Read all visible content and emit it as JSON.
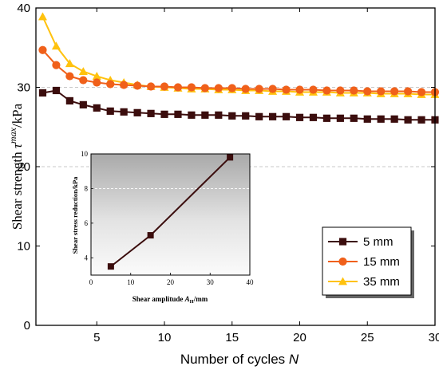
{
  "chart_data": [
    {
      "type": "line",
      "xlabel_main": "Number of cycles ",
      "xlabel_var": "N",
      "ylabel_main": "Shear strength ",
      "ylabel_sym": "τ",
      "ylabel_sup": "max",
      "ylabel_unit": "/kPa",
      "xlim": [
        0.5,
        30
      ],
      "ylim": [
        0,
        40
      ],
      "x_ticks": [
        "5",
        "10",
        "15",
        "20",
        "25",
        "30"
      ],
      "y_ticks": [
        "0",
        "10",
        "20",
        "30",
        "40"
      ],
      "gridlines_y": [
        20,
        30
      ],
      "legend_position": "bottom-right",
      "x": [
        1,
        2,
        3,
        4,
        5,
        6,
        7,
        8,
        9,
        10,
        11,
        12,
        13,
        14,
        15,
        16,
        17,
        18,
        19,
        20,
        21,
        22,
        23,
        24,
        25,
        26,
        27,
        28,
        29,
        30
      ],
      "series": [
        {
          "name": "5 mm",
          "color": "#3b0d0d",
          "marker": "square",
          "values": [
            29.3,
            29.6,
            28.3,
            27.8,
            27.4,
            27.0,
            26.9,
            26.8,
            26.7,
            26.6,
            26.6,
            26.5,
            26.5,
            26.5,
            26.4,
            26.4,
            26.3,
            26.3,
            26.3,
            26.2,
            26.2,
            26.1,
            26.1,
            26.1,
            26.0,
            26.0,
            26.0,
            25.9,
            25.9,
            25.9
          ]
        },
        {
          "name": "15 mm",
          "color": "#f0601a",
          "marker": "circle",
          "values": [
            34.7,
            32.8,
            31.4,
            30.9,
            30.6,
            30.4,
            30.3,
            30.2,
            30.1,
            30.1,
            30.0,
            30.0,
            29.9,
            29.9,
            29.9,
            29.8,
            29.8,
            29.8,
            29.7,
            29.7,
            29.7,
            29.6,
            29.6,
            29.6,
            29.5,
            29.5,
            29.5,
            29.5,
            29.4,
            29.4
          ]
        },
        {
          "name": "35 mm",
          "color": "#ffc20e",
          "marker": "triangle",
          "values": [
            38.9,
            35.2,
            33.0,
            32.0,
            31.4,
            30.9,
            30.6,
            30.3,
            30.1,
            30.0,
            29.9,
            29.8,
            29.8,
            29.7,
            29.7,
            29.6,
            29.6,
            29.5,
            29.5,
            29.4,
            29.4,
            29.4,
            29.3,
            29.3,
            29.3,
            29.2,
            29.2,
            29.2,
            29.1,
            29.1
          ]
        }
      ]
    },
    {
      "type": "line",
      "xlabel_main": "Shear amplitude ",
      "xlabel_var": "A",
      "xlabel_sub": "H",
      "xlabel_unit": "/mm",
      "ylabel": "Shear stress reduction/kPa",
      "xlim": [
        0,
        40
      ],
      "ylim": [
        3,
        10
      ],
      "x_ticks": [
        "0",
        "10",
        "20",
        "30",
        "40"
      ],
      "y_ticks": [
        "4",
        "6",
        "8",
        "10"
      ],
      "gridlines_y": [
        8
      ],
      "background": "gray-gradient",
      "series": [
        {
          "color": "#3b0d0d",
          "marker": "square",
          "x": [
            5,
            15,
            35
          ],
          "values": [
            3.5,
            5.3,
            9.8
          ]
        }
      ]
    }
  ]
}
